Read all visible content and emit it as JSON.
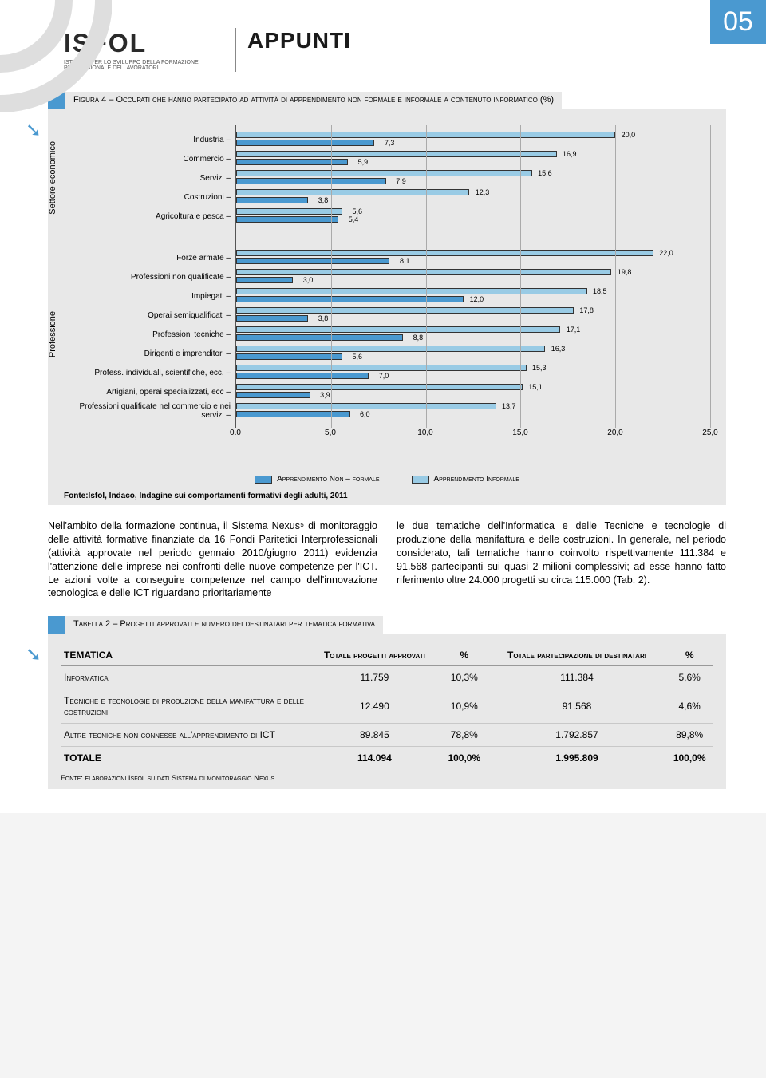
{
  "page_number": "05",
  "logo": {
    "name": "ISFOL",
    "subtitle": "ISTITUTO PER LO SVILUPPO DELLA\nFORMAZIONE PROFESSIONALE\nDEI LAVORATORI"
  },
  "section_title": "APPUNTI",
  "figure": {
    "caption": "Figura 4 – Occupati che hanno partecipato ad attività di apprendimento non formale e informale a contenuto informatico (%)",
    "xaxis": {
      "min": 0.0,
      "max": 25.0,
      "step": 5.0,
      "ticks": [
        "0.0",
        "5,0",
        "10,0",
        "15,0",
        "20,0",
        "25,0"
      ]
    },
    "legend": {
      "nf": "Apprendimento Non – formale",
      "inf": "Apprendimento Informale"
    },
    "colors": {
      "nf": "#4a99d0",
      "inf": "#99cbe5",
      "grid": "#aaaaaa",
      "bg": "#e8e8e8"
    },
    "source": "Fonte:Isfol, Indaco, Indagine sui comportamenti formativi degli adulti, 2011",
    "groups": [
      {
        "axis_label": "Settore economico",
        "rows": [
          {
            "label": "Industria",
            "nf": 7.3,
            "inf": 20.0,
            "nf_text": "7,3",
            "inf_text": "20,0"
          },
          {
            "label": "Commercio",
            "nf": 5.9,
            "inf": 16.9,
            "nf_text": "5,9",
            "inf_text": "16,9"
          },
          {
            "label": "Servizi",
            "nf": 7.9,
            "inf": 15.6,
            "nf_text": "7,9",
            "inf_text": "15,6"
          },
          {
            "label": "Costruzioni",
            "nf": 3.8,
            "inf": 12.3,
            "nf_text": "3,8",
            "inf_text": "12,3"
          },
          {
            "label": "Agricoltura e pesca",
            "nf": 5.4,
            "inf": 5.6,
            "nf_text": "5,4",
            "inf_text": "5,6"
          }
        ]
      },
      {
        "axis_label": "Professione",
        "rows": [
          {
            "label": "Forze armate",
            "nf": 8.1,
            "inf": 22.0,
            "nf_text": "8,1",
            "inf_text": "22,0"
          },
          {
            "label": "Professioni non qualificate",
            "nf": 3.0,
            "inf": 19.8,
            "nf_text": "3,0",
            "inf_text": "19,8"
          },
          {
            "label": "Impiegati",
            "nf": 12.0,
            "inf": 18.5,
            "nf_text": "12,0",
            "inf_text": "18,5"
          },
          {
            "label": "Operai semiqualificati",
            "nf": 3.8,
            "inf": 17.8,
            "nf_text": "3,8",
            "inf_text": "17,8"
          },
          {
            "label": "Professioni tecniche",
            "nf": 8.8,
            "inf": 17.1,
            "nf_text": "8,8",
            "inf_text": "17,1"
          },
          {
            "label": "Dirigenti e imprenditori",
            "nf": 5.6,
            "inf": 16.3,
            "nf_text": "5,6",
            "inf_text": "16,3"
          },
          {
            "label": "Profess. individuali, scientifiche, ecc.",
            "nf": 7.0,
            "inf": 15.3,
            "nf_text": "7,0",
            "inf_text": "15,3"
          },
          {
            "label": "Artigiani, operai specializzati, ecc",
            "nf": 3.9,
            "inf": 15.1,
            "nf_text": "3,9",
            "inf_text": "15,1"
          },
          {
            "label": "Professioni qualificate nel commercio e nei servizi",
            "nf": 6.0,
            "inf": 13.7,
            "nf_text": "6,0",
            "inf_text": "13,7"
          }
        ]
      }
    ]
  },
  "body": {
    "left": "Nell'ambito della formazione continua, il Sistema Nexus⁵ di monitoraggio delle attività formative finanziate da 16 Fondi Paritetici Interprofessionali (attività approvate nel periodo gennaio 2010/giugno 2011) evidenzia l'attenzione delle imprese nei confronti delle nuove competenze per l'ICT. Le azioni volte a conseguire competenze nel campo dell'innovazione tecnologica e delle ICT riguardano prioritariamente",
    "right": "le due tematiche dell'Informatica e delle Tecniche e tecnologie di produzione della manifattura e delle costruzioni. In generale, nel periodo considerato, tali tematiche hanno coinvolto rispettivamente 111.384 e 91.568 partecipanti sui quasi 2 milioni complessivi; ad esse hanno fatto riferimento oltre 24.000 progetti su circa 115.000 (Tab. 2)."
  },
  "table": {
    "caption": "Tabella 2 – Progetti approvati e numero dei destinatari per tematica formativa",
    "columns": [
      "TEMATICA",
      "Totale progetti approvati",
      "%",
      "Totale partecipazione di destinatari",
      "%"
    ],
    "rows": [
      {
        "c": [
          "Informatica",
          "11.759",
          "10,3%",
          "111.384",
          "5,6%"
        ]
      },
      {
        "c": [
          "Tecniche e tecnologie di produzione della manifattura e delle costruzioni",
          "12.490",
          "10,9%",
          "91.568",
          "4,6%"
        ]
      },
      {
        "c": [
          "Altre tecniche non connesse all'apprendimento di ICT",
          "89.845",
          "78,8%",
          "1.792.857",
          "89,8%"
        ]
      },
      {
        "c": [
          "TOTALE",
          "114.094",
          "100,0%",
          "1.995.809",
          "100,0%"
        ],
        "total": true
      }
    ],
    "source": "Fonte: elaborazioni Isfol su dati Sistema di monitoraggio Nexus"
  }
}
